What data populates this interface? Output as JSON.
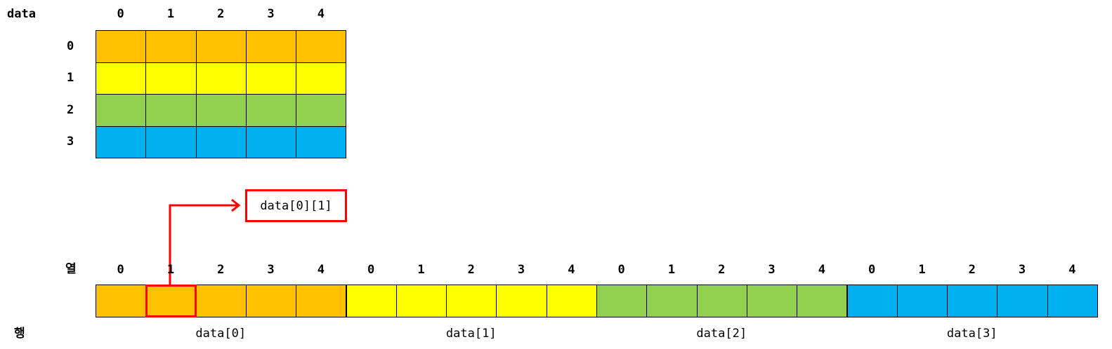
{
  "grid": {
    "name_label": "data",
    "col_headers": [
      "0",
      "1",
      "2",
      "3",
      "4"
    ],
    "row_headers": [
      "0",
      "1",
      "2",
      "3"
    ],
    "row_colors": [
      "#ffc000",
      "#ffff00",
      "#92d050",
      "#00b0f0"
    ]
  },
  "callout": {
    "label": "data[0][1]"
  },
  "linear": {
    "col_axis_label": "열",
    "row_axis_label": "행",
    "col_headers": [
      "0",
      "1",
      "2",
      "3",
      "4",
      "0",
      "1",
      "2",
      "3",
      "4",
      "0",
      "1",
      "2",
      "3",
      "4",
      "0",
      "1",
      "2",
      "3",
      "4"
    ],
    "segment_labels": [
      "data[0]",
      "data[1]",
      "data[2]",
      "data[3]"
    ],
    "highlight": {
      "row": 0,
      "col": 1
    }
  },
  "colors": {
    "highlight": "#ff0000",
    "border": "#000000"
  }
}
